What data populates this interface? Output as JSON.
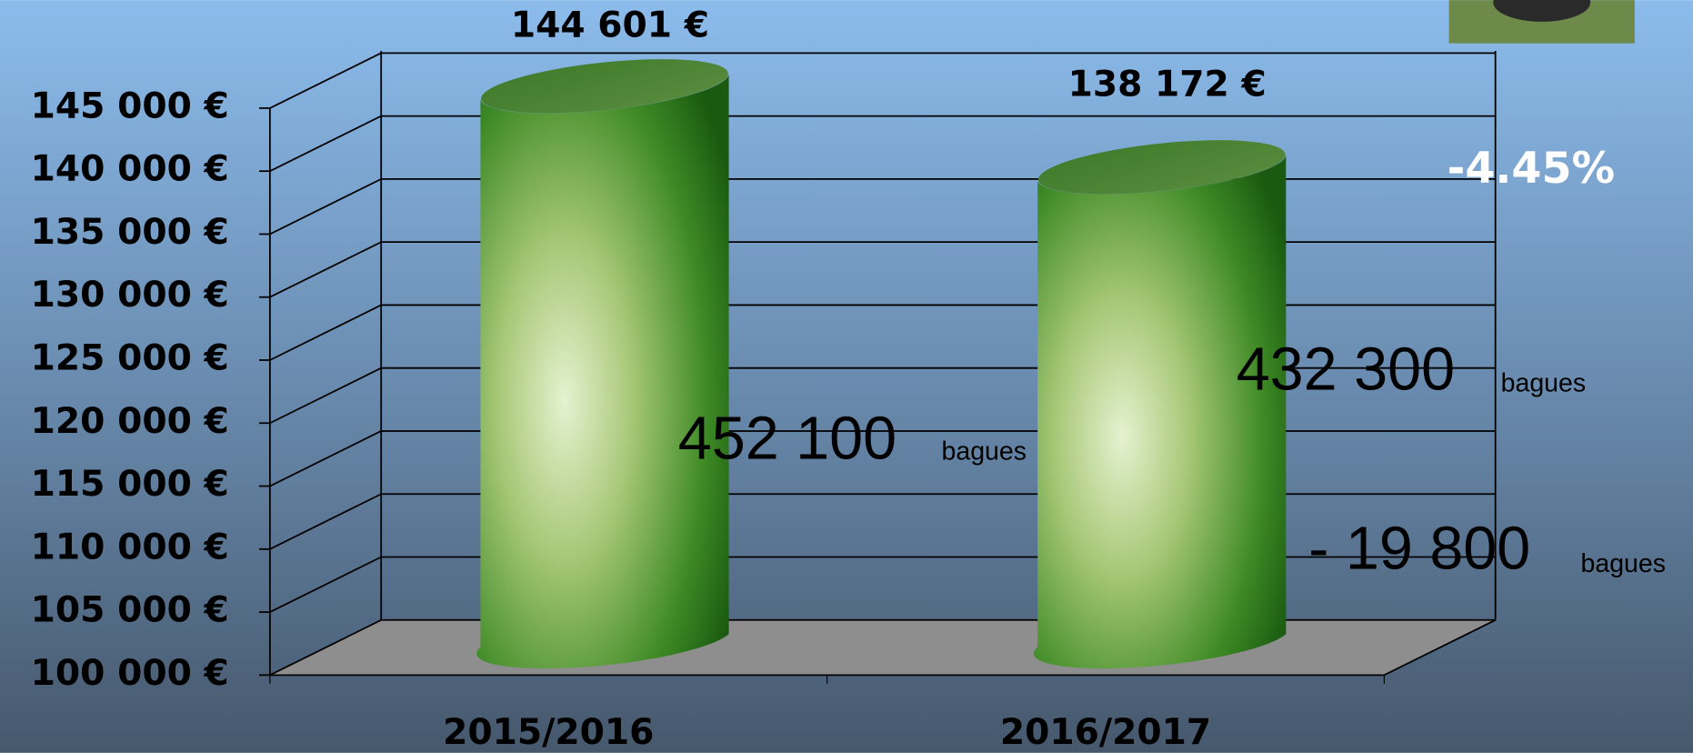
{
  "chart_data": {
    "type": "cylinder",
    "categories": [
      "2015/2016",
      "2016/2017"
    ],
    "values": [
      144601,
      138172
    ],
    "value_labels": [
      "144 601 €",
      "138 172 €"
    ],
    "ylim": [
      100000,
      145000
    ],
    "yticks": [
      {
        "value": 100000,
        "label": "100 000 €"
      },
      {
        "value": 105000,
        "label": "105 000 €"
      },
      {
        "value": 110000,
        "label": "110 000 €"
      },
      {
        "value": 115000,
        "label": "115 000 €"
      },
      {
        "value": 120000,
        "label": "120 000 €"
      },
      {
        "value": 125000,
        "label": "125 000 €"
      },
      {
        "value": 130000,
        "label": "130 000 €"
      },
      {
        "value": 135000,
        "label": "135 000 €"
      },
      {
        "value": 140000,
        "label": "140 000 €"
      },
      {
        "value": 145000,
        "label": "145 000 €"
      }
    ],
    "grid": true,
    "color": "#2a7a1a",
    "annotations": [
      "-4.45%",
      "452 100",
      "bagues",
      "432 300",
      "bagues",
      "- 19 800",
      "bagues"
    ]
  }
}
